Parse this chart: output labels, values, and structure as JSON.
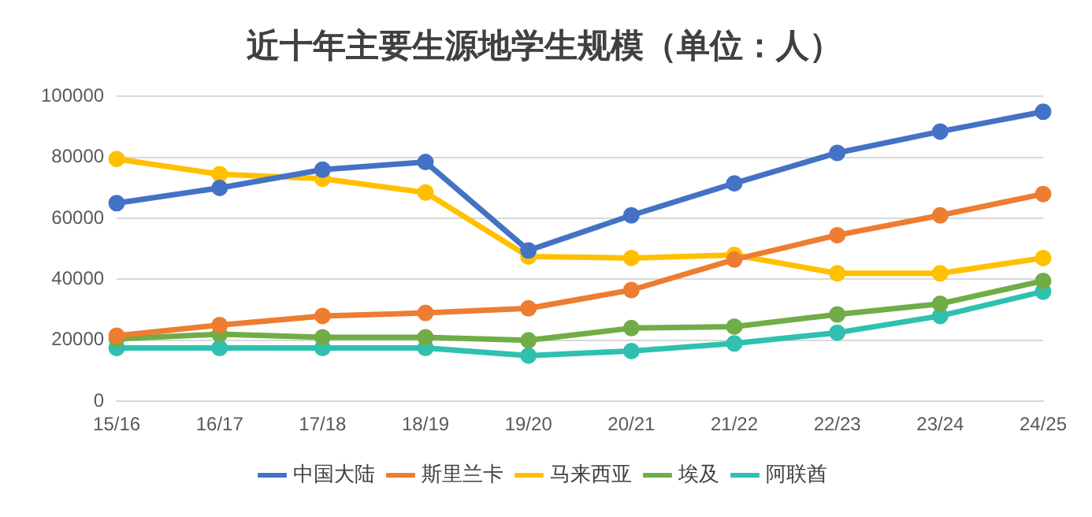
{
  "chart_data": {
    "type": "line",
    "title": "近十年主要生源地学生规模（单位：人）",
    "categories": [
      "15/16",
      "16/17",
      "17/18",
      "18/19",
      "19/20",
      "20/21",
      "21/22",
      "22/23",
      "23/24",
      "24/25"
    ],
    "series": [
      {
        "name": "中国大陆",
        "color": "#4472c4",
        "values": [
          65000,
          70000,
          76000,
          78500,
          49500,
          61000,
          71500,
          81500,
          88500,
          95000
        ]
      },
      {
        "name": "斯里兰卡",
        "color": "#ed7d31",
        "values": [
          21500,
          25000,
          28000,
          29000,
          30500,
          36500,
          46500,
          54500,
          61000,
          68000
        ]
      },
      {
        "name": "马来西亚",
        "color": "#ffc000",
        "values": [
          79500,
          74500,
          73000,
          68500,
          47500,
          47000,
          48000,
          42000,
          42000,
          47000
        ]
      },
      {
        "name": "埃及",
        "color": "#70ad47",
        "values": [
          20500,
          22000,
          21000,
          21000,
          20000,
          24000,
          24500,
          28500,
          32000,
          39500
        ]
      },
      {
        "name": "阿联酋",
        "color": "#2fc0b0",
        "values": [
          17500,
          17500,
          17500,
          17500,
          15000,
          16500,
          19000,
          22500,
          28000,
          36000
        ]
      }
    ],
    "ylim": [
      0,
      100000
    ],
    "yticks": [
      0,
      20000,
      40000,
      60000,
      80000,
      100000
    ],
    "grid": "y",
    "legend": "bottom",
    "marker": "circle",
    "line_style": "solid"
  }
}
